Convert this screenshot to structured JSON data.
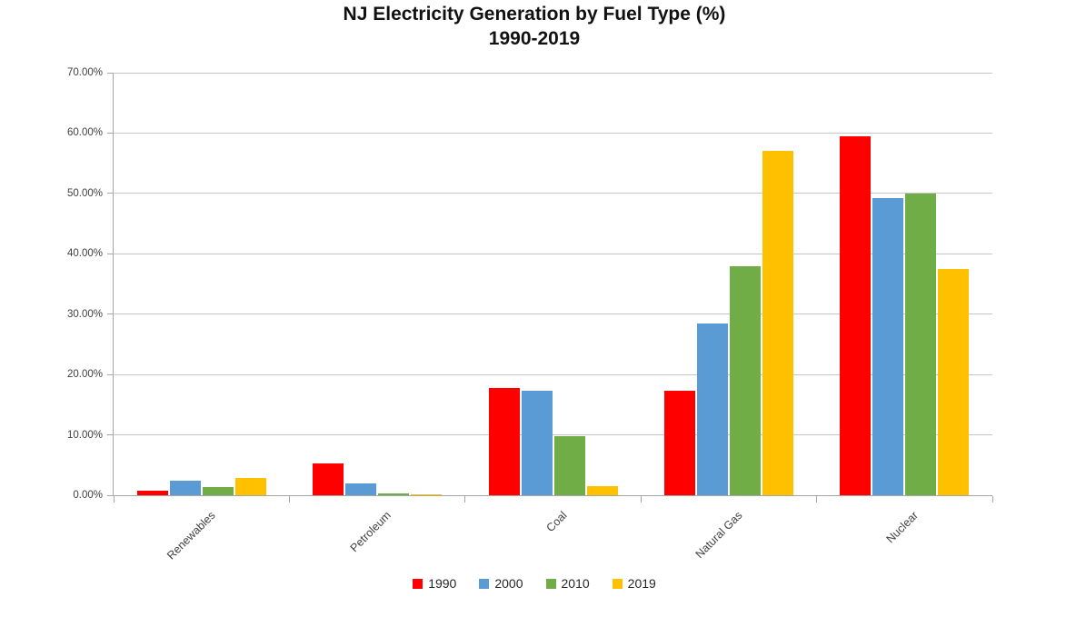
{
  "chart_data": {
    "type": "bar",
    "title": "NJ Electricity Generation by Fuel Type (%)",
    "subtitle": "1990-2019",
    "categories": [
      "Renewables",
      "Petroleum",
      "Coal",
      "Natural Gas",
      "Nuclear"
    ],
    "series": [
      {
        "name": "1990",
        "color": "#FF0000",
        "values": [
          0.7,
          5.3,
          17.7,
          17.3,
          59.5
        ]
      },
      {
        "name": "2000",
        "color": "#5B9BD5",
        "values": [
          2.4,
          1.9,
          17.3,
          28.4,
          49.2
        ]
      },
      {
        "name": "2010",
        "color": "#70AD47",
        "values": [
          1.3,
          0.3,
          9.8,
          38.0,
          50.0
        ]
      },
      {
        "name": "2019",
        "color": "#FFC000",
        "values": [
          2.9,
          0.2,
          1.5,
          57.0,
          37.5
        ]
      }
    ],
    "xlabel": "",
    "ylabel": "",
    "ylim": [
      0,
      70
    ],
    "y_ticks": [
      {
        "value": 0,
        "label": "0.00%"
      },
      {
        "value": 10,
        "label": "10.00%"
      },
      {
        "value": 20,
        "label": "20.00%"
      },
      {
        "value": 30,
        "label": "30.00%"
      },
      {
        "value": 40,
        "label": "40.00%"
      },
      {
        "value": 50,
        "label": "50.00%"
      },
      {
        "value": 60,
        "label": "60.00%"
      },
      {
        "value": 70,
        "label": "70.00%"
      }
    ],
    "grid": true,
    "legend_position": "bottom",
    "colors": {
      "gridline": "#c6c6c6",
      "axis": "#a6a6a6",
      "text": "#404040",
      "title": "#111111"
    }
  }
}
